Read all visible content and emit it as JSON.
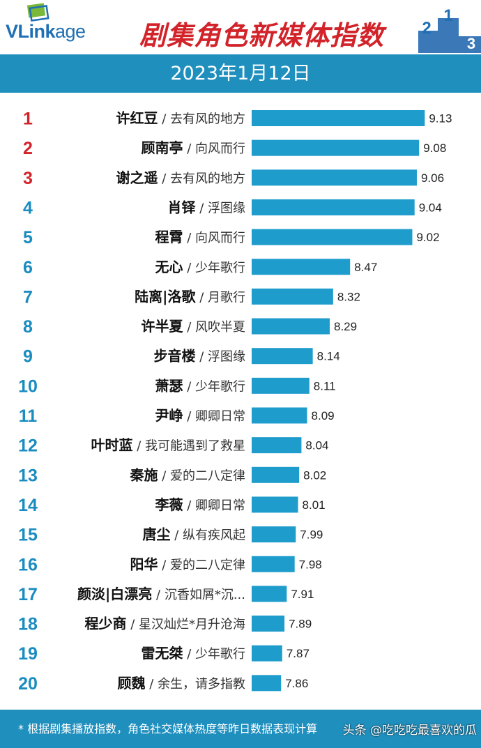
{
  "header": {
    "logo_prefix": "VLink",
    "logo_suffix": "age",
    "title": "剧集角色新媒体指数",
    "podium_labels": [
      "2",
      "1",
      "3"
    ]
  },
  "date": "2023年1月12日",
  "colors": {
    "bar": "#1e9ccc",
    "rank_top3": "#d2232a",
    "rank_other": "#1a8cc0",
    "banner": "#1f8fbe",
    "title": "#d2232a"
  },
  "chart_data": {
    "type": "bar",
    "orientation": "horizontal",
    "title": "剧集角色新媒体指数",
    "subtitle": "2023年1月12日",
    "xlim": [
      7.6,
      9.2
    ],
    "grid": false,
    "items": [
      {
        "rank": "1",
        "name": "许红豆",
        "drama": "去有风的地方",
        "value": 9.13
      },
      {
        "rank": "2",
        "name": "顾南亭",
        "drama": "向风而行",
        "value": 9.08
      },
      {
        "rank": "3",
        "name": "谢之遥",
        "drama": "去有风的地方",
        "value": 9.06
      },
      {
        "rank": "4",
        "name": "肖铎",
        "drama": "浮图缘",
        "value": 9.04
      },
      {
        "rank": "5",
        "name": "程霄",
        "drama": "向风而行",
        "value": 9.02
      },
      {
        "rank": "6",
        "name": "无心",
        "drama": "少年歌行",
        "value": 8.47
      },
      {
        "rank": "7",
        "name": "陆离|洛歌",
        "drama": "月歌行",
        "value": 8.32
      },
      {
        "rank": "8",
        "name": "许半夏",
        "drama": "风吹半夏",
        "value": 8.29
      },
      {
        "rank": "9",
        "name": "步音楼",
        "drama": "浮图缘",
        "value": 8.14
      },
      {
        "rank": "10",
        "name": "萧瑟",
        "drama": "少年歌行",
        "value": 8.11
      },
      {
        "rank": "11",
        "name": "尹峥",
        "drama": "卿卿日常",
        "value": 8.09
      },
      {
        "rank": "12",
        "name": "叶时蓝",
        "drama": "我可能遇到了救星",
        "value": 8.04
      },
      {
        "rank": "13",
        "name": "秦施",
        "drama": "爱的二八定律",
        "value": 8.02
      },
      {
        "rank": "14",
        "name": "李薇",
        "drama": "卿卿日常",
        "value": 8.01
      },
      {
        "rank": "15",
        "name": "唐尘",
        "drama": "纵有疾风起",
        "value": 7.99
      },
      {
        "rank": "16",
        "name": "阳华",
        "drama": "爱的二八定律",
        "value": 7.98
      },
      {
        "rank": "17",
        "name": "颜淡|白漂亮",
        "drama": "沉香如屑*沉...",
        "value": 7.91
      },
      {
        "rank": "18",
        "name": "程少商",
        "drama": "星汉灿烂*月升沧海",
        "value": 7.89
      },
      {
        "rank": "19",
        "name": "雷无桀",
        "drama": "少年歌行",
        "value": 7.87
      },
      {
        "rank": "20",
        "name": "顾魏",
        "drama": "余生，请多指教",
        "value": 7.86
      }
    ]
  },
  "footer": {
    "note": "* 根据剧集播放指数，角色社交媒体热度等昨日数据表现计算",
    "watermark": "头条 @吃吃吃最喜欢的瓜"
  }
}
